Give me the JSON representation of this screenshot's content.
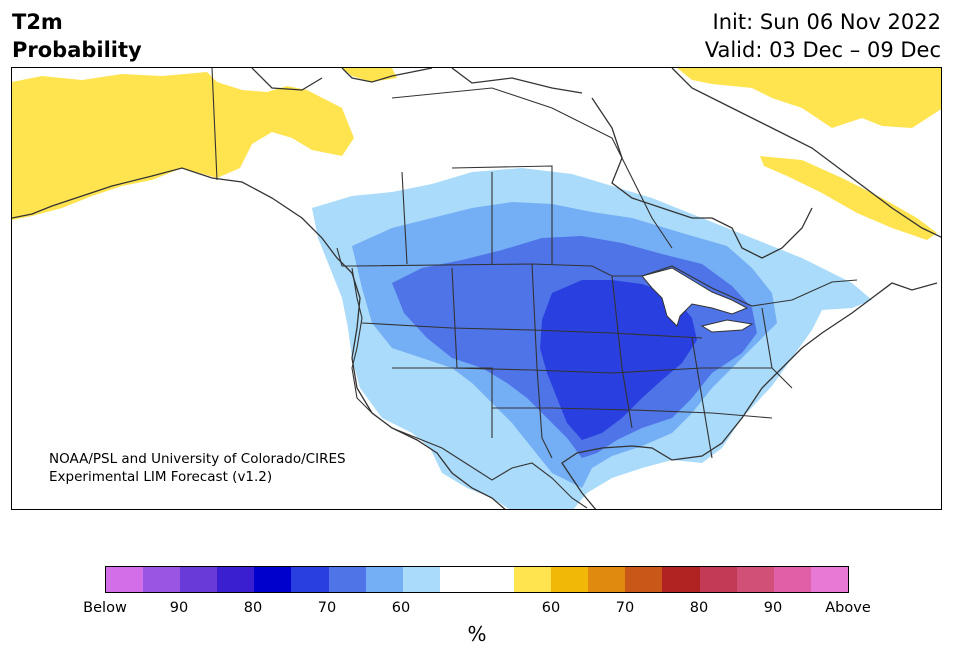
{
  "header": {
    "title_line1": "T2m",
    "title_line2": "Probability",
    "init_text": "Init: Sun 06 Nov 2022",
    "valid_text": "Valid: 03 Dec – 09 Dec"
  },
  "credit": {
    "line1": "NOAA/PSL and University of Colorado/CIRES",
    "line2": "Experimental LIM Forecast (v1.2)"
  },
  "colorbar": {
    "label": "%",
    "colors": [
      "#d16ee8",
      "#9a55e3",
      "#6a3ad8",
      "#3a1fd0",
      "#0000cc",
      "#2a3fdf",
      "#4f74e8",
      "#74aef4",
      "#aadbfa",
      "#ffffff",
      "#ffffff",
      "#ffe34f",
      "#f2b807",
      "#e08a0f",
      "#c85718",
      "#b12222",
      "#c23a55",
      "#d05078",
      "#e060a8",
      "#e87ad6"
    ],
    "ticks": [
      "Below",
      "90",
      "80",
      "70",
      "60",
      "60",
      "70",
      "80",
      "90",
      "Above"
    ]
  },
  "map": {
    "colors": {
      "land": "#ffffff",
      "above_60": "#ffe34f",
      "below_60": "#aadbfa",
      "below_65": "#74aef4",
      "below_70": "#4f74e8",
      "below_75": "#2a3fdf",
      "coast": "#333333"
    }
  }
}
